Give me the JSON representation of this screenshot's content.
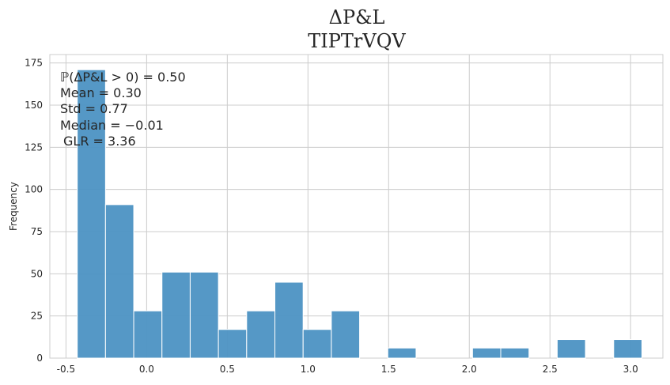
{
  "chart_data": {
    "type": "bar",
    "title": "ΔP&L",
    "subtitle": "TIPTrVQV",
    "xlabel": "",
    "ylabel": "Frequency",
    "xlim": [
      -0.6,
      3.2
    ],
    "ylim": [
      0,
      180
    ],
    "grid": true,
    "x_ticks": [
      "-0.5",
      "0.0",
      "0.5",
      "1.0",
      "1.5",
      "2.0",
      "2.5",
      "3.0"
    ],
    "x_tick_values": [
      -0.5,
      0.0,
      0.5,
      1.0,
      1.5,
      2.0,
      2.5,
      3.0
    ],
    "y_ticks": [
      "0",
      "25",
      "50",
      "75",
      "100",
      "125",
      "150",
      "175"
    ],
    "y_tick_values": [
      0,
      25,
      50,
      75,
      100,
      125,
      150,
      175
    ],
    "bar_color": "#4c92c3",
    "bins": [
      {
        "x0": -0.43,
        "x1": -0.255,
        "count": 171
      },
      {
        "x0": -0.255,
        "x1": -0.08,
        "count": 91
      },
      {
        "x0": -0.08,
        "x1": 0.095,
        "count": 28
      },
      {
        "x0": 0.095,
        "x1": 0.27,
        "count": 51
      },
      {
        "x0": 0.27,
        "x1": 0.445,
        "count": 51
      },
      {
        "x0": 0.445,
        "x1": 0.62,
        "count": 17
      },
      {
        "x0": 0.62,
        "x1": 0.795,
        "count": 28
      },
      {
        "x0": 0.795,
        "x1": 0.97,
        "count": 45
      },
      {
        "x0": 0.97,
        "x1": 1.145,
        "count": 17
      },
      {
        "x0": 1.145,
        "x1": 1.32,
        "count": 28
      },
      {
        "x0": 1.32,
        "x1": 1.495,
        "count": 0
      },
      {
        "x0": 1.495,
        "x1": 1.67,
        "count": 6
      },
      {
        "x0": 1.67,
        "x1": 1.845,
        "count": 0
      },
      {
        "x0": 1.845,
        "x1": 2.02,
        "count": 0
      },
      {
        "x0": 2.02,
        "x1": 2.195,
        "count": 6
      },
      {
        "x0": 2.195,
        "x1": 2.37,
        "count": 6
      },
      {
        "x0": 2.37,
        "x1": 2.545,
        "count": 0
      },
      {
        "x0": 2.545,
        "x1": 2.72,
        "count": 11
      },
      {
        "x0": 2.72,
        "x1": 2.895,
        "count": 0
      },
      {
        "x0": 2.895,
        "x1": 3.07,
        "count": 11
      }
    ],
    "annotations": [
      "ℙ(ΔP&L > 0) = 0.50",
      "Mean = 0.30",
      "Std = 0.77",
      "Median = −0.01",
      "GLR = 3.36"
    ]
  }
}
